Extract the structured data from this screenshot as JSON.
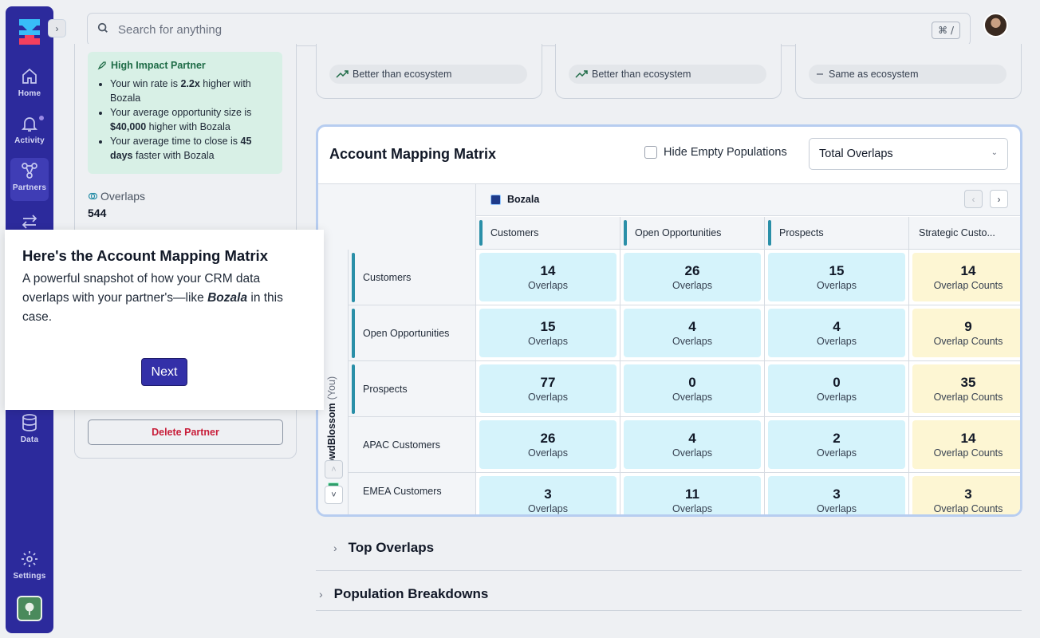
{
  "nav": {
    "items": [
      {
        "label": "Home"
      },
      {
        "label": "Activity"
      },
      {
        "label": "Partners"
      },
      {
        "label": "Data"
      },
      {
        "label": "Settings"
      }
    ]
  },
  "search": {
    "placeholder": "Search for anything",
    "shortcut": "⌘ /"
  },
  "impact": {
    "title": "High Impact Partner",
    "items": [
      {
        "pre": "Your win rate is ",
        "bold": "2.2x",
        "post": " higher with Bozala"
      },
      {
        "pre": "Your average opportunity size is ",
        "bold": "$40,000",
        "post": " higher with Bozala"
      },
      {
        "pre": "Your average time to close is ",
        "bold": "45 days",
        "post": " faster with Bozala"
      }
    ]
  },
  "overlaps": {
    "label": "Overlaps",
    "value": "544"
  },
  "delete_label": "Delete Partner",
  "stats": [
    {
      "text": "Better than ecosystem"
    },
    {
      "text": "Better than ecosystem"
    },
    {
      "text": "Same as ecosystem"
    }
  ],
  "matrix": {
    "title": "Account Mapping Matrix",
    "hide_empty": "Hide Empty Populations",
    "select_value": "Total Overlaps",
    "partner": "Bozala",
    "you_org": "CrowdBlossom",
    "you_tag": "(You)",
    "columns": [
      "Customers",
      "Open Opportunities",
      "Prospects",
      "Strategic Custo..."
    ],
    "rows": [
      {
        "label": "Customers",
        "values": [
          "14",
          "26",
          "15",
          "14"
        ]
      },
      {
        "label": "Open Opportunities",
        "values": [
          "15",
          "4",
          "4",
          "9"
        ]
      },
      {
        "label": "Prospects",
        "values": [
          "77",
          "0",
          "0",
          "35"
        ]
      },
      {
        "label": "APAC Customers",
        "values": [
          "26",
          "4",
          "2",
          "14"
        ]
      },
      {
        "label": "EMEA Customers",
        "values": [
          "3",
          "11",
          "3",
          "3"
        ]
      }
    ],
    "cell_label": "Overlaps",
    "strategic_label": "Overlap Counts"
  },
  "accordions": [
    "Top Overlaps",
    "Population Breakdowns"
  ],
  "tooltip": {
    "title": "Here's the Account Mapping Matrix",
    "body_pre": "A powerful snapshot of how your CRM data overlaps with your partner's—like ",
    "body_bold": "Bozala",
    "body_post": " in this case.",
    "next": "Next"
  }
}
